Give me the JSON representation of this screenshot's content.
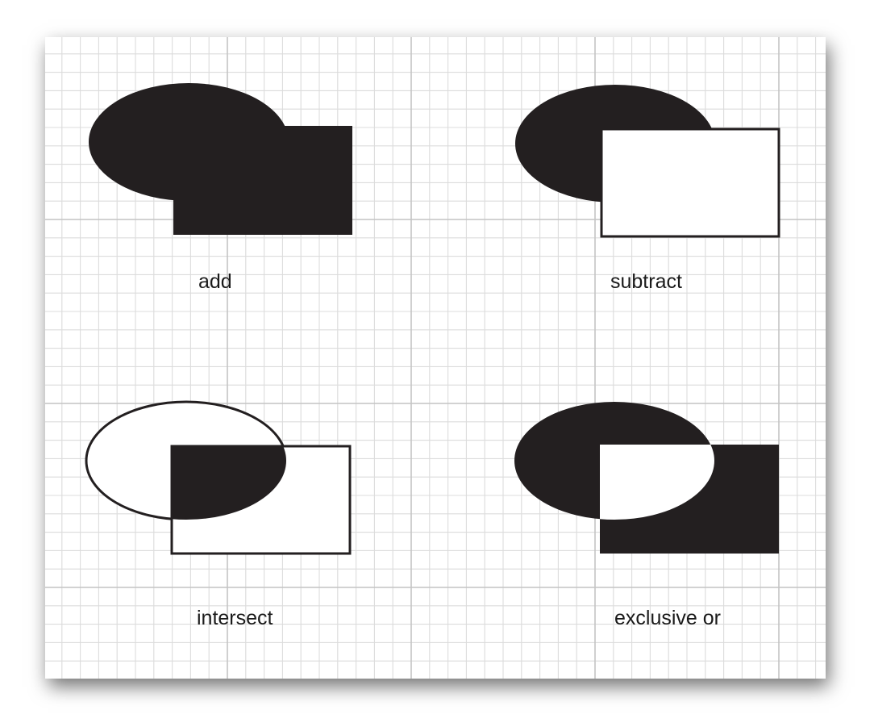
{
  "panels": [
    {
      "label": "add"
    },
    {
      "label": "subtract"
    },
    {
      "label": "intersect"
    },
    {
      "label": "exclusive or"
    }
  ],
  "colors": {
    "fill": "#231f20",
    "outline": "#231f20",
    "grid_minor": "#dcdcdc",
    "grid_major": "#c4c4c4",
    "background": "#ffffff"
  }
}
